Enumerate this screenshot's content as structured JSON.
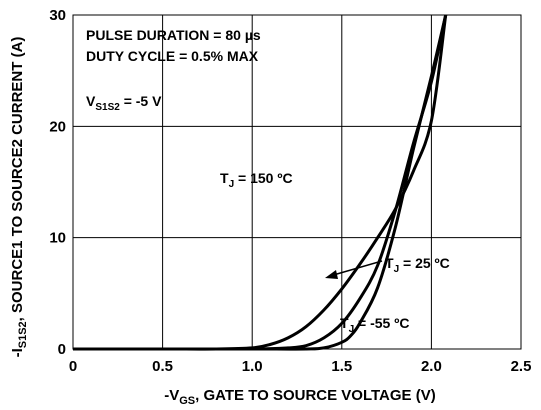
{
  "chart_data": {
    "type": "line",
    "title": "",
    "xlabel": {
      "pre": "-V",
      "sub": "GS",
      "post": ", GATE TO SOURCE VOLTAGE (V)"
    },
    "ylabel": {
      "pre": "-I",
      "sub": "S1S2",
      "post": ", SOURCE1 TO SOURCE2 CURRENT (A)"
    },
    "xlim": [
      0,
      2.5
    ],
    "ylim": [
      0,
      30
    ],
    "xticks": [
      0,
      0.5,
      1.0,
      1.5,
      2.0,
      2.5
    ],
    "xtick_labels": [
      "0",
      "0.5",
      "1.0",
      "1.5",
      "2.0",
      "2.5"
    ],
    "yticks": [
      0,
      10,
      20,
      30
    ],
    "ytick_labels": [
      "0",
      "10",
      "20",
      "30"
    ],
    "grid": true,
    "notes": {
      "line1": "PULSE DURATION = 80 µs",
      "line2": "DUTY CYCLE = 0.5% MAX",
      "vs": {
        "pre": "V",
        "sub": "S1S2",
        "post": " = -5 V"
      }
    },
    "series": [
      {
        "name": {
          "pre": "T",
          "sub": "J",
          "post": " = 150 ºC"
        },
        "x": [
          0,
          0.5,
          0.8,
          1.0,
          1.1,
          1.2,
          1.3,
          1.4,
          1.5,
          1.6,
          1.7,
          1.8,
          1.9,
          2.0,
          2.08
        ],
        "y": [
          0,
          0,
          0,
          0.1,
          0.4,
          1.0,
          2.0,
          3.5,
          5.4,
          7.6,
          10.0,
          12.6,
          16.0,
          20.5,
          30
        ]
      },
      {
        "name": {
          "pre": "T",
          "sub": "J",
          "post": " = 25 ºC"
        },
        "x": [
          0,
          0.5,
          1.0,
          1.2,
          1.3,
          1.4,
          1.5,
          1.6,
          1.7,
          1.8,
          1.9,
          2.0,
          2.08
        ],
        "y": [
          0,
          0,
          0,
          0.1,
          0.3,
          1.0,
          2.3,
          4.5,
          7.5,
          12.5,
          18.5,
          24.0,
          30
        ]
      },
      {
        "name": {
          "pre": "T",
          "sub": "J",
          "post": " = -55 ºC"
        },
        "x": [
          0,
          0.5,
          1.0,
          1.3,
          1.4,
          1.5,
          1.55,
          1.6,
          1.7,
          1.8,
          1.9,
          2.0,
          2.08
        ],
        "y": [
          0,
          0,
          0,
          0,
          0.1,
          0.6,
          1.2,
          2.3,
          5.5,
          11.0,
          18.0,
          24.5,
          30
        ]
      }
    ]
  }
}
